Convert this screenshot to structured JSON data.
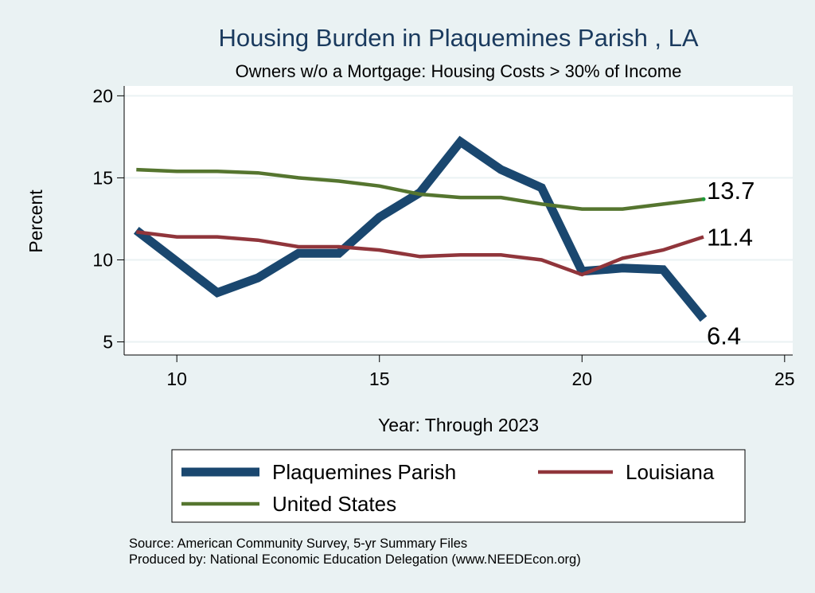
{
  "chart_data": {
    "type": "line",
    "title": "Housing Burden in Plaquemines Parish , LA",
    "subtitle": "Owners w/o a Mortgage: Housing Costs > 30% of Income",
    "xlabel": "Year: Through 2023",
    "ylabel": "Percent",
    "xlim": [
      8.7,
      25.2
    ],
    "ylim": [
      4.2,
      20.6
    ],
    "xticks": [
      10,
      15,
      20,
      25
    ],
    "yticks": [
      5,
      10,
      15,
      20
    ],
    "grid": true,
    "legend_position": "bottom",
    "x": [
      9,
      10,
      11,
      12,
      13,
      14,
      15,
      16,
      17,
      18,
      19,
      20,
      21,
      22,
      23
    ],
    "series": [
      {
        "name": "Plaquemines Parish",
        "color": "#1a476f",
        "values": [
          11.8,
          9.9,
          8.0,
          8.9,
          10.4,
          10.4,
          12.6,
          14.1,
          17.2,
          15.5,
          14.4,
          9.3,
          9.5,
          9.4,
          6.4
        ],
        "end_label": "6.4"
      },
      {
        "name": "Louisiana",
        "color": "#90353b",
        "values": [
          11.7,
          11.4,
          11.4,
          11.2,
          10.8,
          10.8,
          10.6,
          10.2,
          10.3,
          10.3,
          10.0,
          9.1,
          10.1,
          10.6,
          11.4
        ],
        "end_label": "11.4"
      },
      {
        "name": "United States",
        "color": "#55752f",
        "values": [
          15.5,
          15.4,
          15.4,
          15.3,
          15.0,
          14.8,
          14.5,
          14.0,
          13.8,
          13.8,
          13.4,
          13.1,
          13.1,
          13.4,
          13.7
        ],
        "end_label": "13.7"
      }
    ],
    "notes": [
      "Source: American Community Survey, 5-yr Summary Files",
      "Produced by: National Economic Education Delegation (www.NEEDEcon.org)"
    ]
  }
}
